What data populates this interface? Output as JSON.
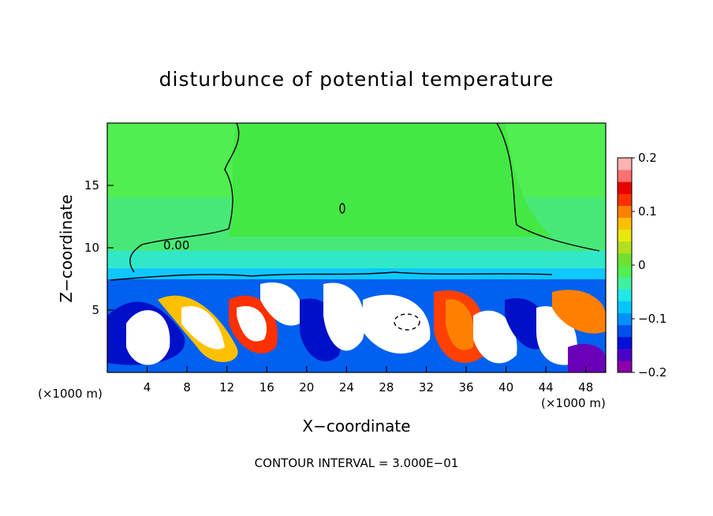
{
  "chart_data": {
    "type": "heatmap",
    "title": "disturbunce of potential temperature",
    "xlabel": "X−coordinate",
    "ylabel": "Z−coordinate",
    "x_unit_label": "(×1000 m)",
    "x_unit_label_right": "(×1000 m)",
    "xlim": [
      0,
      50
    ],
    "ylim": [
      0,
      20
    ],
    "x_ticks": [
      4,
      8,
      12,
      16,
      20,
      24,
      28,
      32,
      36,
      40,
      44,
      48
    ],
    "y_ticks": [
      5,
      10,
      15
    ],
    "colorbar": {
      "range": [
        -0.2,
        0.2
      ],
      "tick_values": [
        0.2,
        0.1,
        0,
        -0.1,
        -0.2
      ],
      "tick_labels": [
        "0.2",
        "0.1",
        "0",
        "−0.1",
        "−0.2"
      ],
      "colors": [
        "#8b00a8",
        "#4b00c8",
        "#0010d8",
        "#0050f0",
        "#0090ff",
        "#00c8ff",
        "#20e8e8",
        "#40f0a0",
        "#50f050",
        "#70e030",
        "#b0e020",
        "#e8e810",
        "#ffc000",
        "#ff8000",
        "#ff3000",
        "#e80000",
        "#ff7070",
        "#ffb0b0"
      ]
    },
    "background_value": 0.0,
    "contour_label": "0.00",
    "contour_interval_text": "CONTOUR INTERVAL = 3.000E−01",
    "grid": false
  }
}
